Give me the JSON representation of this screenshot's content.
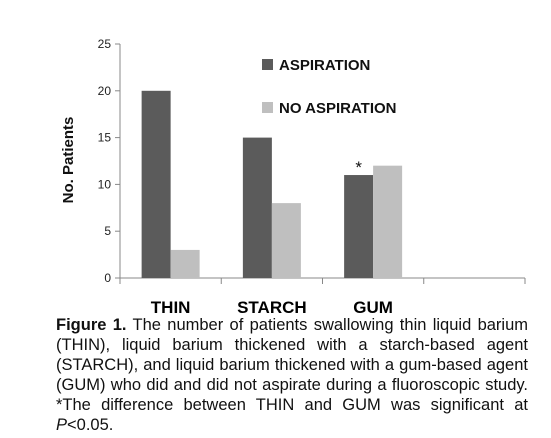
{
  "chart_data": {
    "type": "bar",
    "ylabel": "No. Patients",
    "ylim": [
      0,
      25
    ],
    "yticks": [
      0,
      5,
      10,
      15,
      20,
      25
    ],
    "categories": [
      "THIN",
      "STARCH",
      "GUM"
    ],
    "series": [
      {
        "name": "ASPIRATION",
        "values": [
          20,
          15,
          11
        ],
        "color": "#5b5b5b"
      },
      {
        "name": "NO ASPIRATION",
        "values": [
          3,
          8,
          12
        ],
        "color": "#bfbfbf"
      }
    ],
    "annotation": {
      "text": "*",
      "category": "GUM"
    },
    "legend_position": "top-right",
    "grid": false
  },
  "caption": {
    "label": "Figure 1.",
    "text_before": " The number of patients swallowing thin liquid barium (THIN), liquid barium thickened with a starch-based agent (STARCH), and liquid barium thickened with a gum-based agent (GUM) who did and did not aspirate during a fluoroscopic study. *The difference between THIN and GUM was significant at ",
    "p_symbol": "P",
    "text_after": "<0.05."
  }
}
